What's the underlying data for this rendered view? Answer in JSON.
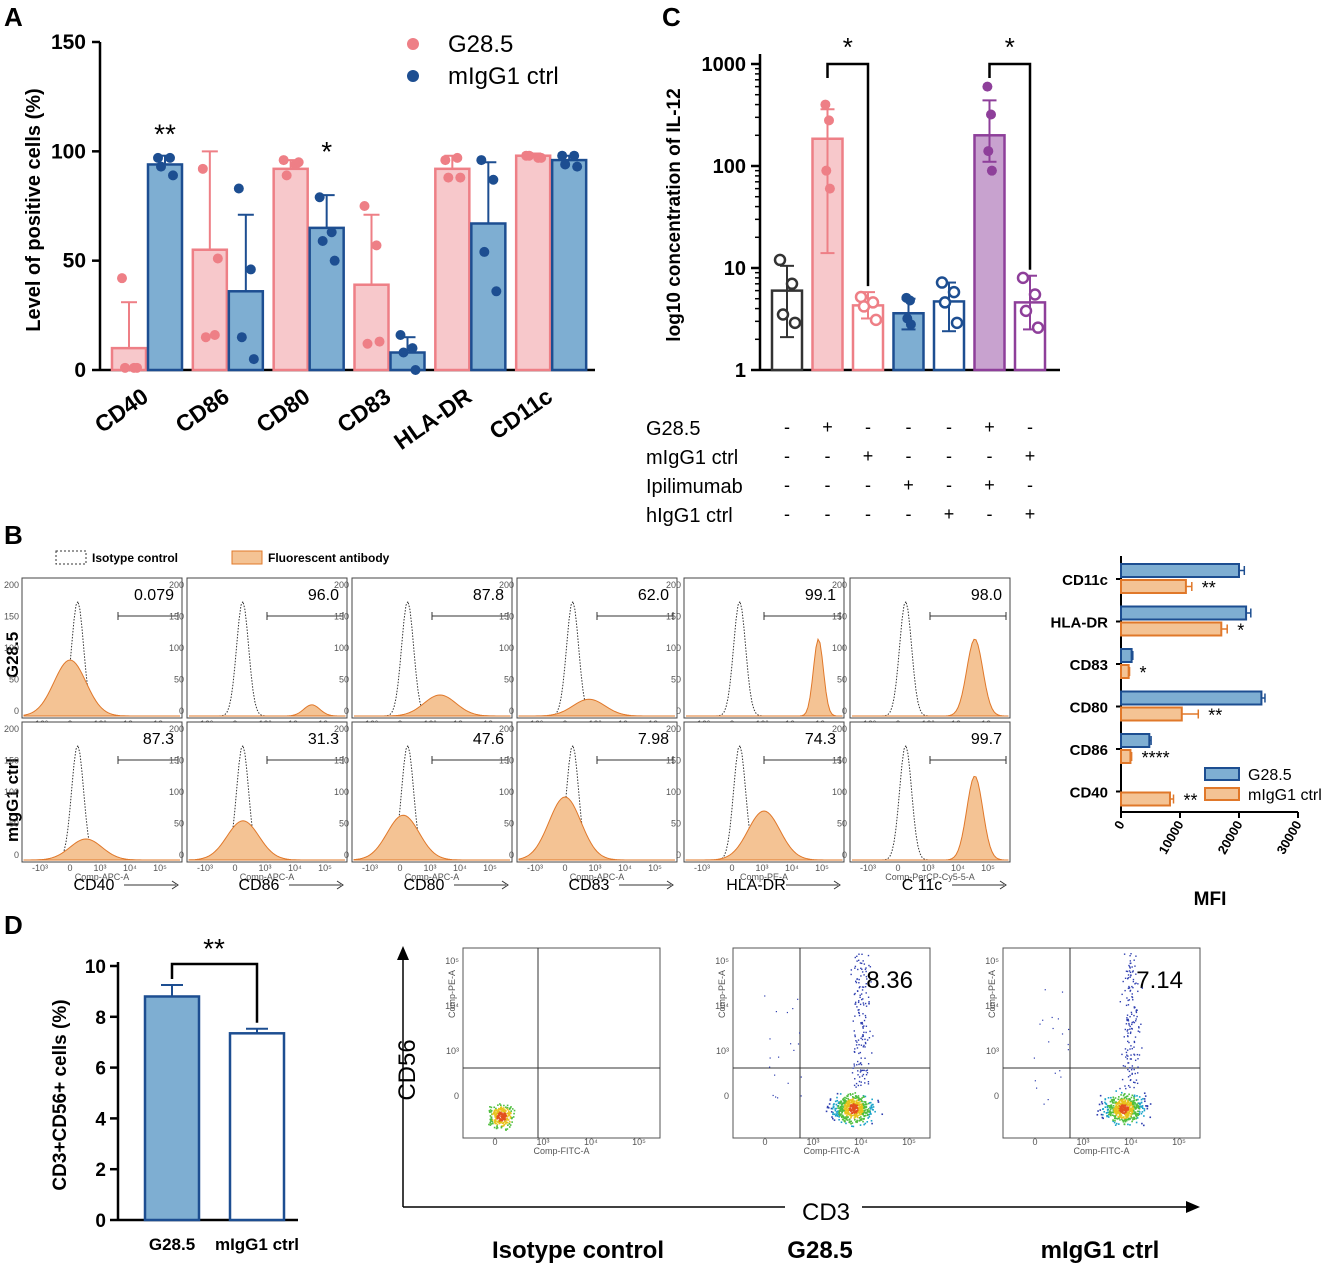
{
  "panels": {
    "a": "A",
    "b": "B",
    "c": "C",
    "d": "D"
  },
  "colors": {
    "pink_fill": "#f7c8cb",
    "pink_stroke": "#ee7f86",
    "pink_dot": "#ee7f86",
    "blue_fill": "#7eaed2",
    "blue_stroke": "#1d4e91",
    "blue_dot": "#1d4e91",
    "purple_fill": "#c8a2cf",
    "purple_stroke": "#8e3f9a",
    "orange_fill": "#f4c394",
    "orange_stroke": "#e0782a",
    "black": "#333333"
  },
  "chart_data": [
    {
      "id": "A",
      "type": "bar",
      "title": "",
      "ylabel": "Level of positive cells (%)",
      "ylim": [
        0,
        150
      ],
      "yticks": [
        0,
        50,
        100,
        150
      ],
      "categories": [
        "CD40",
        "CD86",
        "CD80",
        "CD83",
        "HLA-DR",
        "CD11c"
      ],
      "legend": [
        "G28.5",
        "mIgG1 ctrl"
      ],
      "series": [
        {
          "name": "G28.5",
          "values": [
            10,
            55,
            92,
            39,
            92,
            98
          ],
          "errors": [
            21,
            45,
            4,
            32,
            6,
            1
          ],
          "points": [
            [
              42,
              1,
              1,
              1
            ],
            [
              92,
              16,
              15,
              51
            ],
            [
              96,
              94,
              89,
              95
            ],
            [
              75,
              57,
              12,
              13
            ],
            [
              96,
              97,
              88,
              88
            ],
            [
              98,
              97,
              98,
              97
            ]
          ]
        },
        {
          "name": "mIgG1 ctrl",
          "values": [
            94,
            36,
            65,
            8,
            67,
            96
          ],
          "errors": [
            4,
            35,
            15,
            7,
            28,
            2
          ],
          "points": [
            [
              97,
              97,
              93,
              89
            ],
            [
              83,
              46,
              15,
              5
            ],
            [
              79,
              63,
              59,
              50
            ],
            [
              16,
              10,
              8,
              0
            ],
            [
              96,
              87,
              54,
              36
            ],
            [
              98,
              98,
              94,
              93
            ]
          ]
        }
      ],
      "significance": [
        "**",
        "",
        "*",
        "",
        "",
        ""
      ]
    },
    {
      "id": "C",
      "type": "bar",
      "ylabel": "log10 concentration of IL-12",
      "yscale": "log",
      "ylim": [
        1,
        1000
      ],
      "yticks": [
        1,
        10,
        100,
        1000
      ],
      "groups": 7,
      "values": [
        6,
        185,
        4.3,
        3.6,
        4.7,
        200,
        4.6
      ],
      "err_low": [
        2.1,
        14,
        3.2,
        2.5,
        2.4,
        110,
        2.5
      ],
      "err_high": [
        10.5,
        360,
        5.8,
        5.0,
        7.2,
        440,
        8.4
      ],
      "points": [
        [
          12,
          7,
          3.5,
          2.9
        ],
        [
          400,
          280,
          90,
          60
        ],
        [
          5.2,
          4.6,
          4.2,
          3.1
        ],
        [
          5.1,
          4.8,
          3.2,
          2.8
        ],
        [
          7.2,
          5.8,
          4.6,
          2.9
        ],
        [
          600,
          320,
          140,
          90
        ],
        [
          8,
          5.5,
          3.8,
          2.6
        ]
      ],
      "styles": [
        "black-open",
        "pink-filled",
        "pink-open",
        "blue-filled",
        "blue-open",
        "purple-filled",
        "purple-open"
      ],
      "significance": [
        {
          "from": 2,
          "to": 3,
          "label": "*"
        },
        {
          "from": 6,
          "to": 7,
          "label": "*"
        }
      ],
      "conditions": [
        {
          "label": "G28.5",
          "marks": [
            "-",
            "+",
            "-",
            "-",
            "-",
            "+",
            "-"
          ]
        },
        {
          "label": "mIgG1 ctrl",
          "marks": [
            "-",
            "-",
            "+",
            "-",
            "-",
            "-",
            "+"
          ]
        },
        {
          "label": "Ipilimumab",
          "marks": [
            "-",
            "-",
            "-",
            "+",
            "-",
            "+",
            "-"
          ]
        },
        {
          "label": "hIgG1 ctrl",
          "marks": [
            "-",
            "-",
            "-",
            "-",
            "+",
            "-",
            "+"
          ]
        }
      ]
    },
    {
      "id": "B-MFI",
      "type": "bar",
      "orientation": "horizontal",
      "xlabel": "MFI",
      "xlim": [
        0,
        30000
      ],
      "xticks": [
        0,
        10000,
        20000,
        30000
      ],
      "categories": [
        "CD11c",
        "HLA-DR",
        "CD83",
        "CD80",
        "CD86",
        "CD40"
      ],
      "series": [
        {
          "name": "G28.5",
          "values": [
            20000,
            21200,
            1800,
            23800,
            4800,
            0
          ],
          "errors": [
            900,
            800,
            200,
            600,
            300,
            0
          ]
        },
        {
          "name": "mIgG1 ctrl",
          "values": [
            11000,
            17000,
            1300,
            10300,
            1600,
            8300
          ],
          "errors": [
            1000,
            1000,
            150,
            2800,
            200,
            600
          ]
        }
      ],
      "significance": [
        "**",
        "*",
        "*",
        "**",
        "****",
        "**"
      ]
    },
    {
      "id": "D",
      "type": "bar",
      "ylabel": "CD3+CD56+ cells (%)",
      "ylim": [
        0,
        10
      ],
      "yticks": [
        0,
        2,
        4,
        6,
        8,
        10
      ],
      "categories": [
        "G28.5",
        "mIgG1 ctrl"
      ],
      "values": [
        8.8,
        7.35
      ],
      "errors": [
        0.45,
        0.18
      ],
      "significance": "**"
    }
  ],
  "flow": {
    "legend": {
      "isotype": "Isotype control",
      "fluor": "Fluorescent antibody"
    },
    "row_labels": [
      "G28.5",
      "mIgG1 ctrl"
    ],
    "markers": [
      "CD40",
      "CD86",
      "CD80",
      "CD83",
      "HLA-DR",
      "C 11c"
    ],
    "axis_small": [
      "Comp-APC-A",
      "Comp-APC-A",
      "Comp-APC-A",
      "Comp-APC-A",
      "Comp-PE-A",
      "Comp-PerCP-Cy5-5-A"
    ],
    "top_values": [
      "0.079",
      "96.0",
      "87.8",
      "62.0",
      "99.1",
      "98.0"
    ],
    "bottom_values": [
      "87.3",
      "31.3",
      "47.6",
      "7.98",
      "74.3",
      "99.7"
    ],
    "top_peak_pos": [
      0.3,
      0.78,
      0.55,
      0.45,
      0.84,
      0.78
    ],
    "bottom_peak_pos": [
      0.4,
      0.35,
      0.32,
      0.3,
      0.5,
      0.78
    ]
  },
  "dplot": {
    "xlabel": "CD3",
    "ylabel": "CD56",
    "x_small": "Comp-FITC-A",
    "y_small": "Comp-PE-A",
    "plots": [
      {
        "label": "Isotype control",
        "value": ""
      },
      {
        "label": "G28.5",
        "value": "8.36"
      },
      {
        "label": "mIgG1 ctrl",
        "value": "7.14"
      }
    ]
  }
}
